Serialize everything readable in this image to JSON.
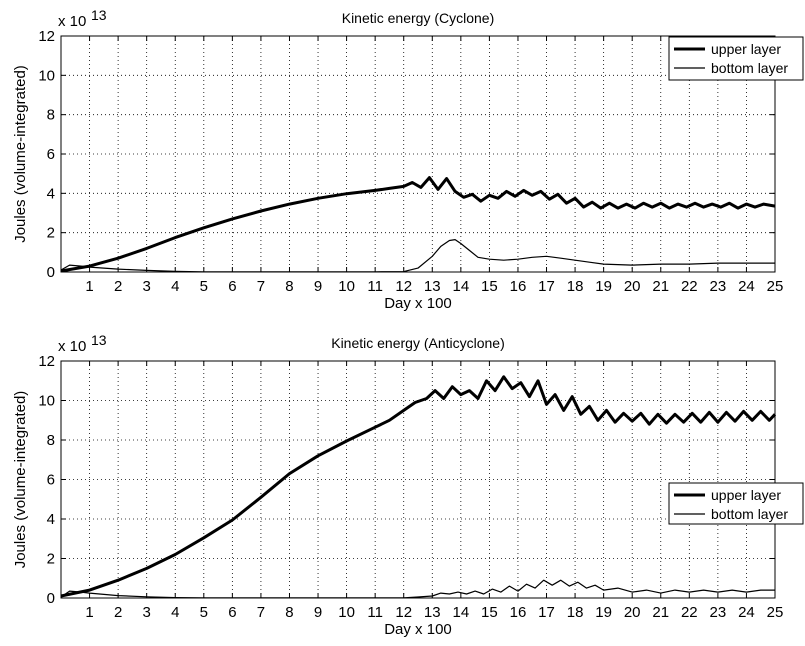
{
  "chart_data": [
    {
      "type": "line",
      "title": "Kinetic energy (Cyclone)",
      "xlabel": "Day x 100",
      "ylabel": "Joules (volume-integrated)",
      "yscale_label": "x 10",
      "yscale_exponent": "13",
      "xlim": [
        0,
        25
      ],
      "ylim": [
        0,
        12
      ],
      "xticks": [
        1,
        2,
        3,
        4,
        5,
        6,
        7,
        8,
        9,
        10,
        11,
        12,
        13,
        14,
        15,
        16,
        17,
        18,
        19,
        20,
        21,
        22,
        23,
        24,
        25
      ],
      "yticks": [
        0,
        2,
        4,
        6,
        8,
        10,
        12
      ],
      "grid": true,
      "legend_position": "top-right",
      "series": [
        {
          "name": "upper layer",
          "line": "thick",
          "x": [
            0,
            1,
            2,
            3,
            4,
            5,
            6,
            7,
            8,
            9,
            10,
            11,
            11.5,
            12,
            12.3,
            12.6,
            12.9,
            13.2,
            13.5,
            13.8,
            14.1,
            14.4,
            14.7,
            15,
            15.3,
            15.6,
            15.9,
            16.2,
            16.5,
            16.8,
            17.1,
            17.4,
            17.7,
            18,
            18.3,
            18.6,
            18.9,
            19.2,
            19.5,
            19.8,
            20.1,
            20.4,
            20.7,
            21,
            21.3,
            21.6,
            21.9,
            22.2,
            22.5,
            22.8,
            23.1,
            23.4,
            23.7,
            24,
            24.3,
            24.6,
            25
          ],
          "y": [
            0.05,
            0.3,
            0.7,
            1.2,
            1.75,
            2.25,
            2.7,
            3.1,
            3.45,
            3.75,
            3.98,
            4.15,
            4.25,
            4.35,
            4.55,
            4.3,
            4.8,
            4.2,
            4.75,
            4.1,
            3.8,
            3.95,
            3.6,
            3.9,
            3.75,
            4.1,
            3.85,
            4.15,
            3.9,
            4.1,
            3.7,
            3.95,
            3.5,
            3.75,
            3.3,
            3.55,
            3.25,
            3.5,
            3.25,
            3.45,
            3.25,
            3.5,
            3.3,
            3.5,
            3.25,
            3.45,
            3.3,
            3.5,
            3.3,
            3.45,
            3.3,
            3.5,
            3.25,
            3.45,
            3.3,
            3.45,
            3.35
          ]
        },
        {
          "name": "bottom layer",
          "line": "thin",
          "x": [
            0,
            0.3,
            0.7,
            1,
            2,
            3,
            4,
            5,
            6,
            7,
            8,
            9,
            10,
            11,
            12,
            12.5,
            13,
            13.3,
            13.6,
            13.8,
            14,
            14.3,
            14.6,
            15,
            15.5,
            16,
            16.5,
            17,
            17.5,
            18,
            18.5,
            19,
            20,
            21,
            22,
            23,
            24,
            25
          ],
          "y": [
            0.1,
            0.35,
            0.3,
            0.25,
            0.15,
            0.08,
            0.03,
            0.01,
            0.01,
            0.01,
            0.01,
            0.01,
            0.01,
            0.01,
            0.02,
            0.2,
            0.8,
            1.3,
            1.6,
            1.65,
            1.45,
            1.1,
            0.75,
            0.65,
            0.6,
            0.65,
            0.75,
            0.8,
            0.7,
            0.6,
            0.5,
            0.4,
            0.35,
            0.4,
            0.4,
            0.45,
            0.45,
            0.45
          ]
        }
      ]
    },
    {
      "type": "line",
      "title": "Kinetic energy (Anticyclone)",
      "xlabel": "Day x 100",
      "ylabel": "Joules (volume-integrated)",
      "yscale_label": "x 10",
      "yscale_exponent": "13",
      "xlim": [
        0,
        25
      ],
      "ylim": [
        0,
        12
      ],
      "xticks": [
        1,
        2,
        3,
        4,
        5,
        6,
        7,
        8,
        9,
        10,
        11,
        12,
        13,
        14,
        15,
        16,
        17,
        18,
        19,
        20,
        21,
        22,
        23,
        24,
        25
      ],
      "yticks": [
        0,
        2,
        4,
        6,
        8,
        10,
        12
      ],
      "grid": true,
      "legend_position": "right",
      "series": [
        {
          "name": "upper layer",
          "line": "thick",
          "x": [
            0,
            1,
            2,
            3,
            4,
            5,
            6,
            7,
            8,
            9,
            10,
            11,
            11.5,
            12,
            12.4,
            12.8,
            13.1,
            13.4,
            13.7,
            14,
            14.3,
            14.6,
            14.9,
            15.2,
            15.5,
            15.8,
            16.1,
            16.4,
            16.7,
            17,
            17.3,
            17.6,
            17.9,
            18.2,
            18.5,
            18.8,
            19.1,
            19.4,
            19.7,
            20,
            20.3,
            20.6,
            20.9,
            21.2,
            21.5,
            21.8,
            22.1,
            22.4,
            22.7,
            23,
            23.3,
            23.6,
            23.9,
            24.2,
            24.5,
            24.8,
            25
          ],
          "y": [
            0.1,
            0.4,
            0.9,
            1.5,
            2.2,
            3.05,
            3.95,
            5.1,
            6.3,
            7.2,
            7.95,
            8.65,
            9.0,
            9.5,
            9.9,
            10.1,
            10.5,
            10.1,
            10.7,
            10.3,
            10.5,
            10.1,
            11.0,
            10.5,
            11.2,
            10.6,
            10.9,
            10.2,
            11.0,
            9.8,
            10.3,
            9.5,
            10.2,
            9.3,
            9.7,
            9.0,
            9.5,
            8.9,
            9.35,
            8.95,
            9.35,
            8.8,
            9.3,
            8.85,
            9.3,
            8.9,
            9.35,
            8.9,
            9.4,
            8.9,
            9.4,
            8.95,
            9.45,
            9.0,
            9.45,
            9.0,
            9.3
          ]
        },
        {
          "name": "bottom layer",
          "line": "thin",
          "x": [
            0,
            0.3,
            0.7,
            1,
            2,
            3,
            4,
            5,
            6,
            7,
            8,
            9,
            10,
            11,
            12,
            12.5,
            13,
            13.3,
            13.6,
            13.9,
            14.2,
            14.5,
            14.8,
            15.1,
            15.4,
            15.7,
            16,
            16.3,
            16.6,
            16.9,
            17.2,
            17.5,
            17.8,
            18.1,
            18.4,
            18.7,
            19,
            19.5,
            20,
            20.5,
            21,
            21.5,
            22,
            22.5,
            23,
            23.5,
            24,
            24.5,
            25
          ],
          "y": [
            0.05,
            0.35,
            0.3,
            0.25,
            0.12,
            0.06,
            0.02,
            0.01,
            0.01,
            0.01,
            0.01,
            0.01,
            0.01,
            0.01,
            0.01,
            0.05,
            0.1,
            0.25,
            0.2,
            0.3,
            0.2,
            0.35,
            0.2,
            0.45,
            0.3,
            0.6,
            0.35,
            0.7,
            0.5,
            0.9,
            0.65,
            0.9,
            0.6,
            0.8,
            0.5,
            0.65,
            0.4,
            0.5,
            0.3,
            0.4,
            0.25,
            0.4,
            0.3,
            0.4,
            0.3,
            0.4,
            0.3,
            0.4,
            0.4
          ]
        }
      ]
    }
  ]
}
